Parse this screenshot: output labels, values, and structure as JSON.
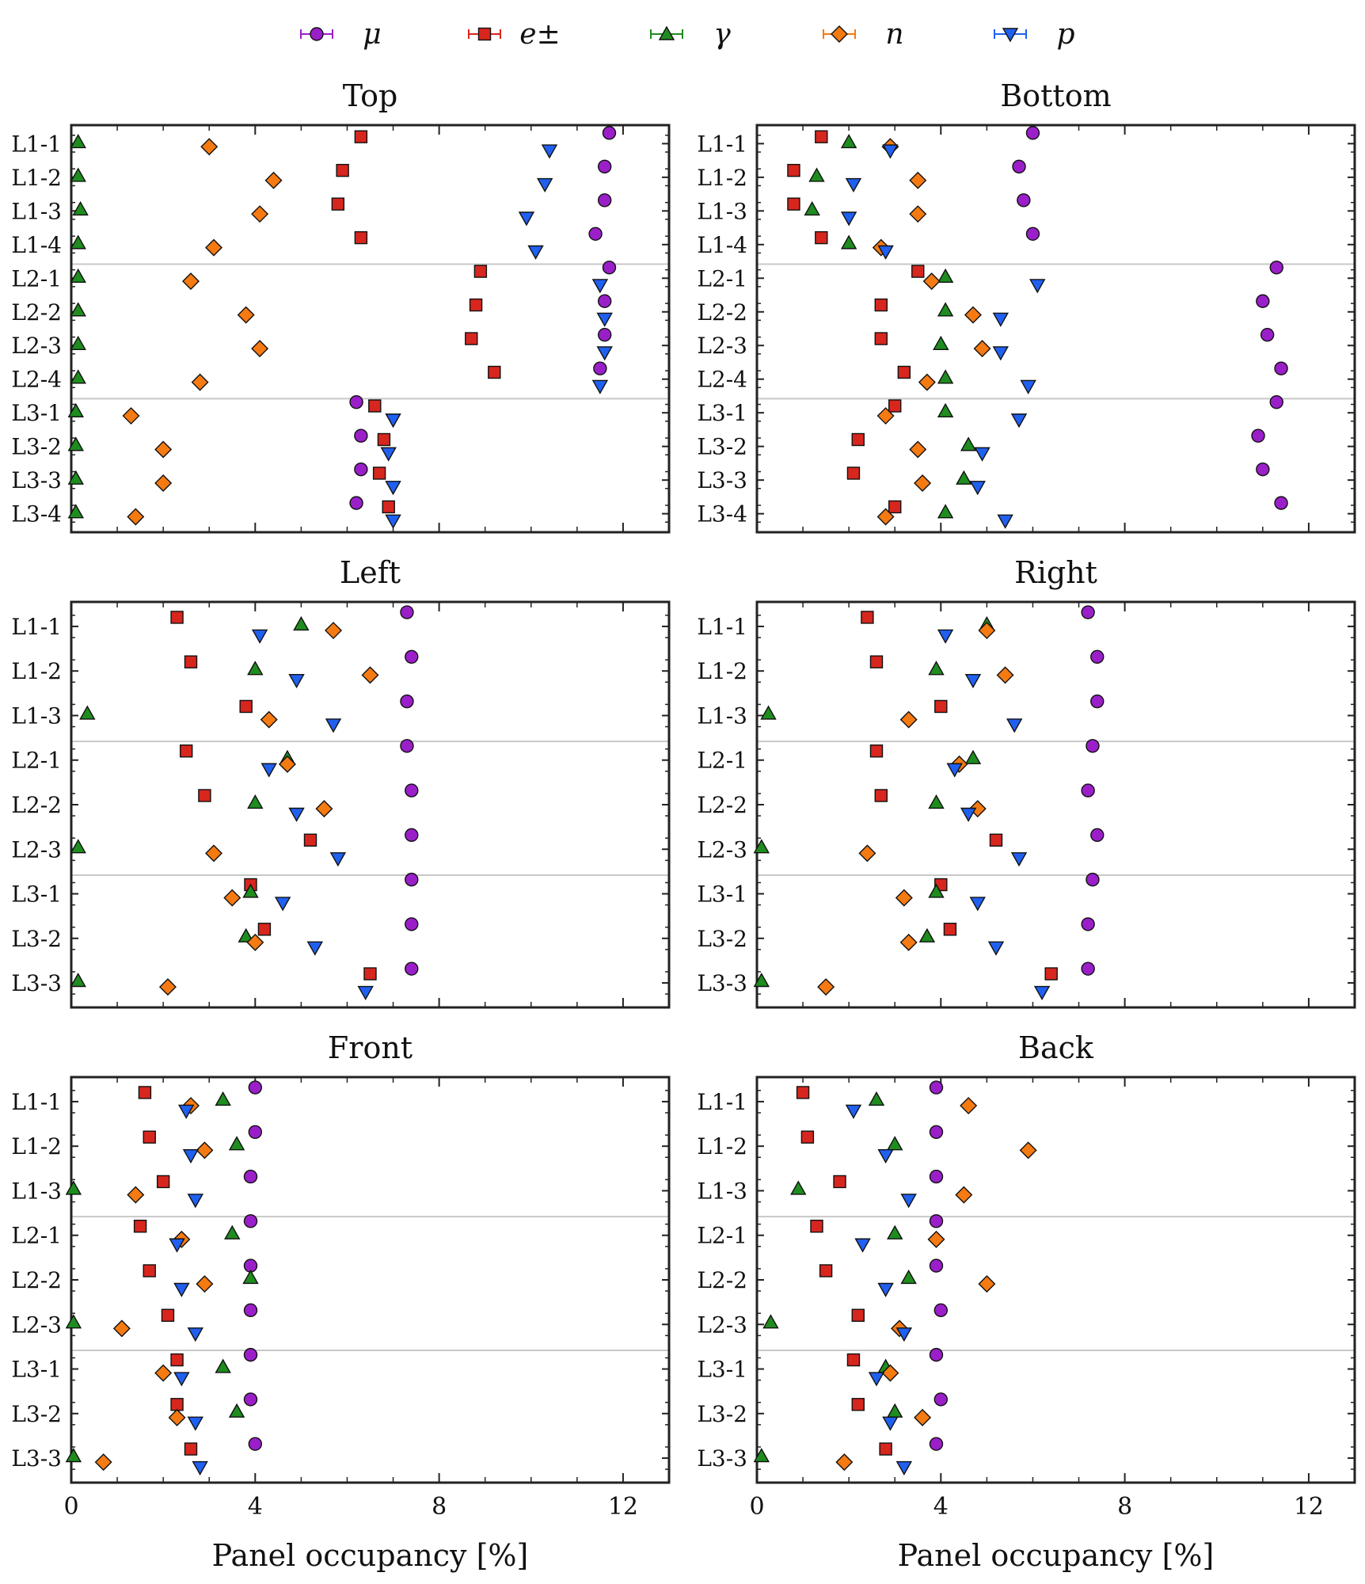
{
  "legend": [
    {
      "key": "mu",
      "label": "μ",
      "marker": "circle",
      "color": "#9A1FC9"
    },
    {
      "key": "e",
      "label": "e±",
      "marker": "square",
      "color": "#D7261E"
    },
    {
      "key": "gamma",
      "label": "γ",
      "marker": "triangle-up",
      "color": "#1E8C1E"
    },
    {
      "key": "n",
      "label": "n",
      "marker": "diamond",
      "color": "#F57A12"
    },
    {
      "key": "p",
      "label": "p",
      "marker": "triangle-down",
      "color": "#2060F0"
    }
  ],
  "chart_data": [
    {
      "type": "scatter",
      "title": "Top",
      "xlabel": "",
      "xlim": [
        0,
        13
      ],
      "xticks": [
        0,
        4,
        8,
        12
      ],
      "grid": false,
      "categories": [
        "L1-1",
        "L1-2",
        "L1-3",
        "L1-4",
        "L2-1",
        "L2-2",
        "L2-3",
        "L2-4",
        "L3-1",
        "L3-2",
        "L3-3",
        "L3-4"
      ],
      "group_separators_after": [
        "L1-4",
        "L2-4"
      ],
      "series": [
        {
          "name": "μ",
          "key": "mu",
          "values": [
            11.7,
            11.6,
            11.6,
            11.4,
            11.7,
            11.6,
            11.6,
            11.5,
            6.2,
            6.3,
            6.3,
            6.2
          ]
        },
        {
          "name": "e±",
          "key": "e",
          "values": [
            6.3,
            5.9,
            5.8,
            6.3,
            8.9,
            8.8,
            8.7,
            9.2,
            6.6,
            6.8,
            6.7,
            6.9
          ]
        },
        {
          "name": "γ",
          "key": "gamma",
          "values": [
            0.15,
            0.15,
            0.2,
            0.15,
            0.15,
            0.15,
            0.15,
            0.15,
            0.1,
            0.1,
            0.1,
            0.1
          ]
        },
        {
          "name": "n",
          "key": "n",
          "values": [
            3.0,
            4.4,
            4.1,
            3.1,
            2.6,
            3.8,
            4.1,
            2.8,
            1.3,
            2.0,
            2.0,
            1.4
          ]
        },
        {
          "name": "p",
          "key": "p",
          "values": [
            10.4,
            10.3,
            9.9,
            10.1,
            11.5,
            11.6,
            11.6,
            11.5,
            7.0,
            6.9,
            7.0,
            7.0
          ]
        }
      ]
    },
    {
      "type": "scatter",
      "title": "Bottom",
      "xlabel": "",
      "xlim": [
        0,
        13
      ],
      "xticks": [
        0,
        4,
        8,
        12
      ],
      "grid": false,
      "categories": [
        "L1-1",
        "L1-2",
        "L1-3",
        "L1-4",
        "L2-1",
        "L2-2",
        "L2-3",
        "L2-4",
        "L3-1",
        "L3-2",
        "L3-3",
        "L3-4"
      ],
      "group_separators_after": [
        "L1-4",
        "L2-4"
      ],
      "series": [
        {
          "name": "μ",
          "key": "mu",
          "values": [
            6.0,
            5.7,
            5.8,
            6.0,
            11.3,
            11.0,
            11.1,
            11.4,
            11.3,
            10.9,
            11.0,
            11.4
          ]
        },
        {
          "name": "e±",
          "key": "e",
          "values": [
            1.4,
            0.8,
            0.8,
            1.4,
            3.5,
            2.7,
            2.7,
            3.2,
            3.0,
            2.2,
            2.1,
            3.0
          ]
        },
        {
          "name": "γ",
          "key": "gamma",
          "values": [
            2.0,
            1.3,
            1.2,
            2.0,
            4.1,
            4.1,
            4.0,
            4.1,
            4.1,
            4.6,
            4.5,
            4.1
          ]
        },
        {
          "name": "n",
          "key": "n",
          "values": [
            2.9,
            3.5,
            3.5,
            2.7,
            3.8,
            4.7,
            4.9,
            3.7,
            2.8,
            3.5,
            3.6,
            2.8
          ]
        },
        {
          "name": "p",
          "key": "p",
          "values": [
            2.9,
            2.1,
            2.0,
            2.8,
            6.1,
            5.3,
            5.3,
            5.9,
            5.7,
            4.9,
            4.8,
            5.4
          ]
        }
      ]
    },
    {
      "type": "scatter",
      "title": "Left",
      "xlabel": "",
      "xlim": [
        0,
        13
      ],
      "xticks": [
        0,
        4,
        8,
        12
      ],
      "grid": false,
      "categories": [
        "L1-1",
        "L1-2",
        "L1-3",
        "L2-1",
        "L2-2",
        "L2-3",
        "L3-1",
        "L3-2",
        "L3-3"
      ],
      "group_separators_after": [
        "L1-3",
        "L2-3"
      ],
      "series": [
        {
          "name": "μ",
          "key": "mu",
          "values": [
            7.3,
            7.4,
            7.3,
            7.3,
            7.4,
            7.4,
            7.4,
            7.4,
            7.4
          ]
        },
        {
          "name": "e±",
          "key": "e",
          "values": [
            2.3,
            2.6,
            3.8,
            2.5,
            2.9,
            5.2,
            3.9,
            4.2,
            6.5
          ]
        },
        {
          "name": "γ",
          "key": "gamma",
          "values": [
            5.0,
            4.0,
            0.35,
            4.7,
            4.0,
            0.15,
            3.9,
            3.8,
            0.15
          ]
        },
        {
          "name": "n",
          "key": "n",
          "values": [
            5.7,
            6.5,
            4.3,
            4.7,
            5.5,
            3.1,
            3.5,
            4.0,
            2.1
          ]
        },
        {
          "name": "p",
          "key": "p",
          "values": [
            4.1,
            4.9,
            5.7,
            4.3,
            4.9,
            5.8,
            4.6,
            5.3,
            6.4
          ]
        }
      ]
    },
    {
      "type": "scatter",
      "title": "Right",
      "xlabel": "",
      "xlim": [
        0,
        13
      ],
      "xticks": [
        0,
        4,
        8,
        12
      ],
      "grid": false,
      "categories": [
        "L1-1",
        "L1-2",
        "L1-3",
        "L2-1",
        "L2-2",
        "L2-3",
        "L3-1",
        "L3-2",
        "L3-3"
      ],
      "group_separators_after": [
        "L1-3",
        "L2-3"
      ],
      "series": [
        {
          "name": "μ",
          "key": "mu",
          "values": [
            7.2,
            7.4,
            7.4,
            7.3,
            7.2,
            7.4,
            7.3,
            7.2,
            7.2
          ]
        },
        {
          "name": "e±",
          "key": "e",
          "values": [
            2.4,
            2.6,
            4.0,
            2.6,
            2.7,
            5.2,
            4.0,
            4.2,
            6.4
          ]
        },
        {
          "name": "γ",
          "key": "gamma",
          "values": [
            5.0,
            3.9,
            0.25,
            4.7,
            3.9,
            0.1,
            3.9,
            3.7,
            0.1
          ]
        },
        {
          "name": "n",
          "key": "n",
          "values": [
            5.0,
            5.4,
            3.3,
            4.4,
            4.8,
            2.4,
            3.2,
            3.3,
            1.5
          ]
        },
        {
          "name": "p",
          "key": "p",
          "values": [
            4.1,
            4.7,
            5.6,
            4.3,
            4.6,
            5.7,
            4.8,
            5.2,
            6.2
          ]
        }
      ]
    },
    {
      "type": "scatter",
      "title": "Front",
      "xlabel": "Panel occupancy [%]",
      "xlim": [
        0,
        13
      ],
      "xticks": [
        0,
        4,
        8,
        12
      ],
      "grid": false,
      "categories": [
        "L1-1",
        "L1-2",
        "L1-3",
        "L2-1",
        "L2-2",
        "L2-3",
        "L3-1",
        "L3-2",
        "L3-3"
      ],
      "group_separators_after": [
        "L1-3",
        "L2-3"
      ],
      "series": [
        {
          "name": "μ",
          "key": "mu",
          "values": [
            4.0,
            4.0,
            3.9,
            3.9,
            3.9,
            3.9,
            3.9,
            3.9,
            4.0
          ]
        },
        {
          "name": "e±",
          "key": "e",
          "values": [
            1.6,
            1.7,
            2.0,
            1.5,
            1.7,
            2.1,
            2.3,
            2.3,
            2.6
          ]
        },
        {
          "name": "γ",
          "key": "gamma",
          "values": [
            3.3,
            3.6,
            0.05,
            3.5,
            3.9,
            0.05,
            3.3,
            3.6,
            0.05
          ]
        },
        {
          "name": "n",
          "key": "n",
          "values": [
            2.6,
            2.9,
            1.4,
            2.4,
            2.9,
            1.1,
            2.0,
            2.3,
            0.7
          ]
        },
        {
          "name": "p",
          "key": "p",
          "values": [
            2.5,
            2.6,
            2.7,
            2.3,
            2.4,
            2.7,
            2.4,
            2.7,
            2.8
          ]
        }
      ]
    },
    {
      "type": "scatter",
      "title": "Back",
      "xlabel": "Panel occupancy [%]",
      "xlim": [
        0,
        13
      ],
      "xticks": [
        0,
        4,
        8,
        12
      ],
      "grid": false,
      "categories": [
        "L1-1",
        "L1-2",
        "L1-3",
        "L2-1",
        "L2-2",
        "L2-3",
        "L3-1",
        "L3-2",
        "L3-3"
      ],
      "group_separators_after": [
        "L1-3",
        "L2-3"
      ],
      "series": [
        {
          "name": "μ",
          "key": "mu",
          "values": [
            3.9,
            3.9,
            3.9,
            3.9,
            3.9,
            4.0,
            3.9,
            4.0,
            3.9
          ]
        },
        {
          "name": "e±",
          "key": "e",
          "values": [
            1.0,
            1.1,
            1.8,
            1.3,
            1.5,
            2.2,
            2.1,
            2.2,
            2.8
          ]
        },
        {
          "name": "γ",
          "key": "gamma",
          "values": [
            2.6,
            3.0,
            0.9,
            3.0,
            3.3,
            0.3,
            2.8,
            3.0,
            0.1
          ]
        },
        {
          "name": "n",
          "key": "n",
          "values": [
            4.6,
            5.9,
            4.5,
            3.9,
            5.0,
            3.1,
            2.9,
            3.6,
            1.9
          ]
        },
        {
          "name": "p",
          "key": "p",
          "values": [
            2.1,
            2.8,
            3.3,
            2.3,
            2.8,
            3.2,
            2.6,
            2.9,
            3.2
          ]
        }
      ]
    }
  ]
}
